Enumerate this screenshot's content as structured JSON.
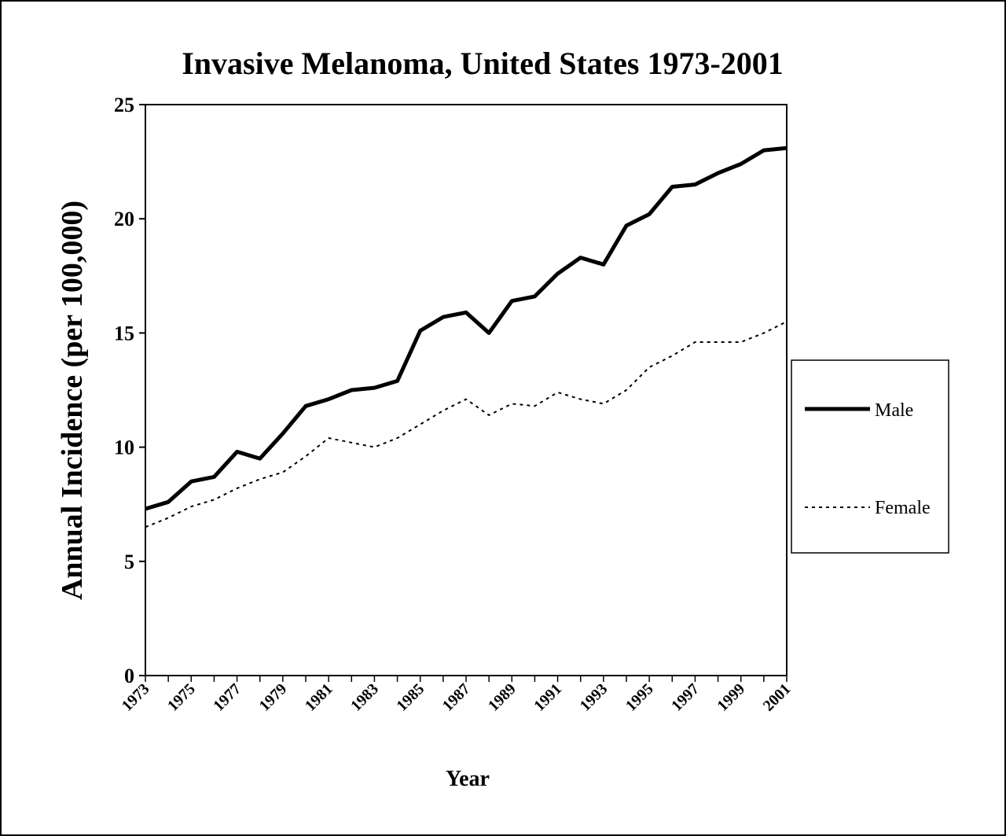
{
  "chart_data": {
    "type": "line",
    "title": "Invasive Melanoma, United States 1973-2001",
    "xlabel": "Year",
    "ylabel": "Annual Incidence (per 100,000)",
    "ylim": [
      0,
      25
    ],
    "yticks": [
      "0",
      "5",
      "10",
      "15",
      "20",
      "25"
    ],
    "x": [
      1973,
      1974,
      1975,
      1976,
      1977,
      1978,
      1979,
      1980,
      1981,
      1982,
      1983,
      1984,
      1985,
      1986,
      1987,
      1988,
      1989,
      1990,
      1991,
      1992,
      1993,
      1994,
      1995,
      1996,
      1997,
      1998,
      1999,
      2000,
      2001
    ],
    "xtick_labels": [
      "1973",
      "1975",
      "1977",
      "1979",
      "1981",
      "1983",
      "1985",
      "1987",
      "1989",
      "1991",
      "1993",
      "1995",
      "1997",
      "1999",
      "2001"
    ],
    "grid": false,
    "legend_position": "right",
    "series": [
      {
        "name": "Male",
        "style": "solid",
        "color": "#000000",
        "values": [
          7.3,
          7.6,
          8.5,
          8.7,
          9.8,
          9.5,
          10.6,
          11.8,
          12.1,
          12.5,
          12.6,
          12.9,
          15.1,
          15.7,
          15.9,
          15.0,
          16.4,
          16.6,
          17.6,
          18.3,
          18.0,
          19.7,
          20.2,
          21.4,
          21.5,
          22.0,
          22.4,
          23.0,
          23.1
        ]
      },
      {
        "name": "Female",
        "style": "dotted",
        "color": "#000000",
        "values": [
          6.5,
          6.9,
          7.4,
          7.7,
          8.2,
          8.6,
          8.9,
          9.6,
          10.4,
          10.2,
          10.0,
          10.4,
          11.0,
          11.6,
          12.1,
          11.4,
          11.9,
          11.8,
          12.4,
          12.1,
          11.9,
          12.5,
          13.5,
          14.0,
          14.6,
          14.6,
          14.6,
          15.0,
          15.5
        ]
      }
    ]
  }
}
